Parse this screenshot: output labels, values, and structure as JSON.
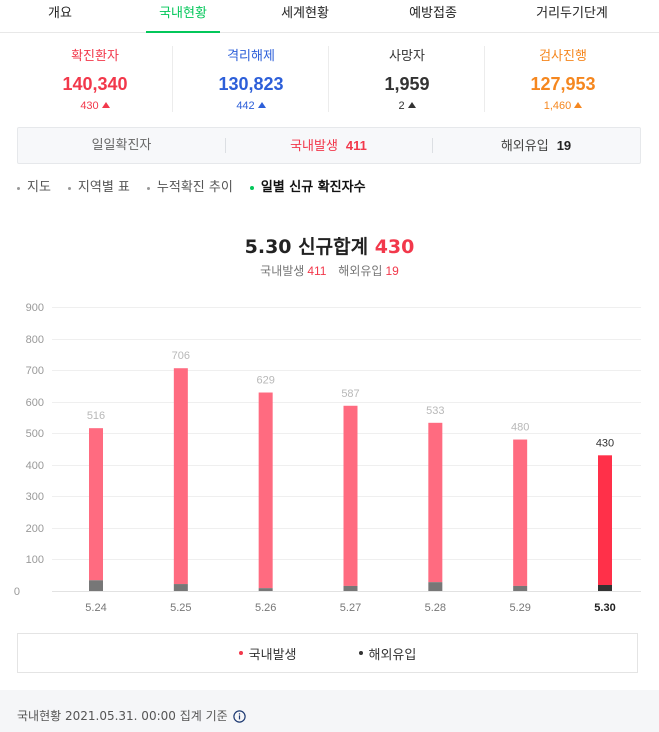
{
  "tabs": [
    {
      "label": "개요"
    },
    {
      "label": "국내현황",
      "active": true
    },
    {
      "label": "세계현황"
    },
    {
      "label": "예방접종"
    },
    {
      "label": "거리두기단계"
    }
  ],
  "colors": {
    "accent": "#03c75a",
    "text": "#333333",
    "footer_bg": "#f5f6f8"
  },
  "stats": [
    {
      "label": "확진환자",
      "value": "140,340",
      "delta": "430",
      "icon": "increase-arrow-icon",
      "color": "#f2384b"
    },
    {
      "label": "격리해제",
      "value": "130,823",
      "delta": "442",
      "icon": "increase-arrow-icon",
      "color": "#2d5fd9"
    },
    {
      "label": "사망자",
      "value": "1,959",
      "delta": "2",
      "icon": "increase-arrow-icon",
      "color": "#333333"
    },
    {
      "label": "검사진행",
      "value": "127,953",
      "delta": "1,460",
      "icon": "increase-arrow-icon",
      "color": "#f5871f"
    }
  ],
  "daily_box": {
    "title": "일일확진자",
    "domestic_label": "국내발생",
    "domestic_value": "411",
    "overseas_label": "해외유입",
    "overseas_value": "19"
  },
  "filters": [
    {
      "label": "지도"
    },
    {
      "label": "지역별 표"
    },
    {
      "label": "누적확진 추이"
    },
    {
      "label": "일별 신규 확진자수",
      "active": true
    }
  ],
  "chart_data": {
    "type": "bar",
    "stacked": true,
    "title": {
      "date": "5.30",
      "label": "신규합계",
      "total": "430"
    },
    "subtitle": {
      "domestic_label": "국내발생",
      "domestic_value": "411",
      "overseas_label": "해외유입",
      "overseas_value": "19"
    },
    "categories": [
      "5.24",
      "5.25",
      "5.26",
      "5.27",
      "5.28",
      "5.29",
      "5.30"
    ],
    "series": [
      {
        "name": "국내발생",
        "values": [
          482,
          684,
          620,
          571,
          505,
          464,
          411
        ],
        "color": "#ff6b80",
        "highlight_color": "#ff3049",
        "legend_color": "#f2384b"
      },
      {
        "name": "해외유입",
        "values": [
          34,
          22,
          9,
          16,
          28,
          16,
          19
        ],
        "color": "#777777",
        "highlight_color": "#333333",
        "legend_color": "#333333"
      }
    ],
    "totals": [
      516,
      706,
      629,
      587,
      533,
      480,
      430
    ],
    "selected_index": 6,
    "ylim": [
      0,
      900
    ],
    "yticks": [
      0,
      100,
      200,
      300,
      400,
      500,
      600,
      700,
      800,
      900
    ],
    "grid": true,
    "legend": "bottom"
  },
  "footer": {
    "text": "국내현황 2021.05.31. 00:00 집계 기준",
    "info_icon": "info-icon"
  }
}
